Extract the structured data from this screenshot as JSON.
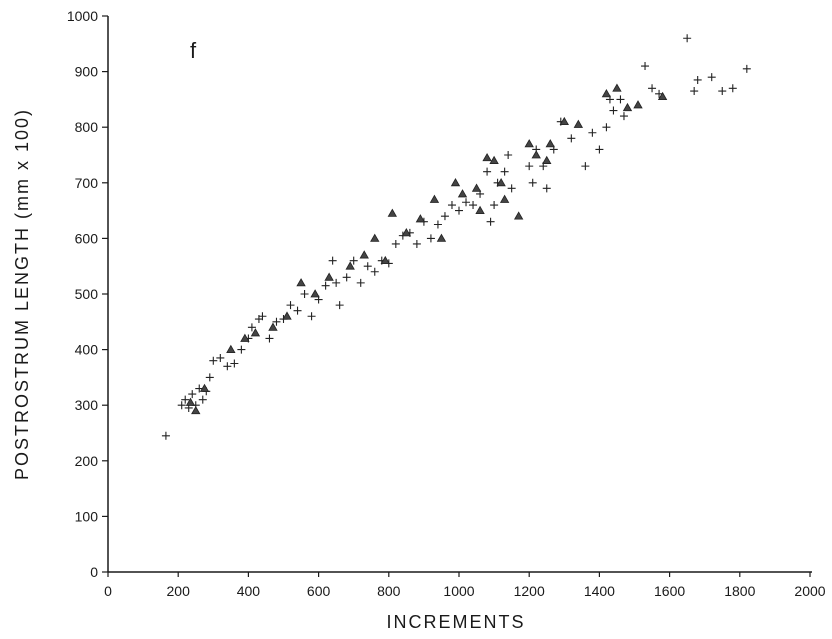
{
  "chart_data": {
    "type": "scatter",
    "panel_label": "f",
    "xlabel": "INCREMENTS",
    "ylabel": "POSTROSTRUM LENGTH (mm x 100)",
    "xlim": [
      0,
      2000
    ],
    "ylim": [
      0,
      1000
    ],
    "xticks": [
      "0",
      "200",
      "400",
      "600",
      "800",
      "1000",
      "1200",
      "1400",
      "1600",
      "1800",
      "2000"
    ],
    "yticks": [
      "0",
      "100",
      "200",
      "300",
      "400",
      "500",
      "600",
      "700",
      "800",
      "900",
      "1000"
    ],
    "grid": false,
    "series": [
      {
        "marker": "plus",
        "points": [
          [
            165,
            245
          ],
          [
            210,
            300
          ],
          [
            220,
            310
          ],
          [
            230,
            295
          ],
          [
            240,
            320
          ],
          [
            250,
            300
          ],
          [
            260,
            330
          ],
          [
            270,
            310
          ],
          [
            280,
            325
          ],
          [
            290,
            350
          ],
          [
            300,
            380
          ],
          [
            320,
            385
          ],
          [
            340,
            370
          ],
          [
            360,
            375
          ],
          [
            380,
            400
          ],
          [
            400,
            420
          ],
          [
            410,
            440
          ],
          [
            430,
            455
          ],
          [
            440,
            460
          ],
          [
            460,
            420
          ],
          [
            480,
            450
          ],
          [
            500,
            455
          ],
          [
            520,
            480
          ],
          [
            540,
            470
          ],
          [
            560,
            500
          ],
          [
            580,
            460
          ],
          [
            600,
            490
          ],
          [
            620,
            515
          ],
          [
            640,
            560
          ],
          [
            650,
            520
          ],
          [
            660,
            480
          ],
          [
            680,
            530
          ],
          [
            700,
            560
          ],
          [
            720,
            520
          ],
          [
            740,
            550
          ],
          [
            760,
            540
          ],
          [
            780,
            560
          ],
          [
            800,
            555
          ],
          [
            820,
            590
          ],
          [
            840,
            605
          ],
          [
            860,
            610
          ],
          [
            880,
            590
          ],
          [
            900,
            630
          ],
          [
            920,
            600
          ],
          [
            940,
            625
          ],
          [
            960,
            640
          ],
          [
            980,
            660
          ],
          [
            1000,
            650
          ],
          [
            1020,
            665
          ],
          [
            1040,
            660
          ],
          [
            1060,
            680
          ],
          [
            1080,
            720
          ],
          [
            1090,
            630
          ],
          [
            1100,
            660
          ],
          [
            1110,
            700
          ],
          [
            1130,
            720
          ],
          [
            1140,
            750
          ],
          [
            1150,
            690
          ],
          [
            1200,
            730
          ],
          [
            1210,
            700
          ],
          [
            1220,
            760
          ],
          [
            1240,
            730
          ],
          [
            1250,
            690
          ],
          [
            1270,
            760
          ],
          [
            1290,
            810
          ],
          [
            1320,
            780
          ],
          [
            1360,
            730
          ],
          [
            1380,
            790
          ],
          [
            1400,
            760
          ],
          [
            1420,
            800
          ],
          [
            1430,
            850
          ],
          [
            1440,
            830
          ],
          [
            1460,
            850
          ],
          [
            1470,
            820
          ],
          [
            1530,
            910
          ],
          [
            1550,
            870
          ],
          [
            1570,
            860
          ],
          [
            1650,
            960
          ],
          [
            1670,
            865
          ],
          [
            1680,
            885
          ],
          [
            1720,
            890
          ],
          [
            1750,
            865
          ],
          [
            1780,
            870
          ],
          [
            1820,
            905
          ]
        ]
      },
      {
        "marker": "triangle",
        "points": [
          [
            235,
            305
          ],
          [
            250,
            290
          ],
          [
            275,
            330
          ],
          [
            350,
            400
          ],
          [
            390,
            420
          ],
          [
            420,
            430
          ],
          [
            470,
            440
          ],
          [
            510,
            460
          ],
          [
            550,
            520
          ],
          [
            590,
            500
          ],
          [
            630,
            530
          ],
          [
            690,
            550
          ],
          [
            730,
            570
          ],
          [
            760,
            600
          ],
          [
            790,
            560
          ],
          [
            810,
            645
          ],
          [
            850,
            610
          ],
          [
            890,
            635
          ],
          [
            930,
            670
          ],
          [
            950,
            600
          ],
          [
            990,
            700
          ],
          [
            1010,
            680
          ],
          [
            1050,
            690
          ],
          [
            1060,
            650
          ],
          [
            1080,
            745
          ],
          [
            1100,
            740
          ],
          [
            1120,
            700
          ],
          [
            1130,
            670
          ],
          [
            1170,
            640
          ],
          [
            1200,
            770
          ],
          [
            1220,
            750
          ],
          [
            1250,
            740
          ],
          [
            1260,
            770
          ],
          [
            1300,
            810
          ],
          [
            1340,
            805
          ],
          [
            1420,
            860
          ],
          [
            1450,
            870
          ],
          [
            1480,
            835
          ],
          [
            1510,
            840
          ],
          [
            1580,
            855
          ]
        ]
      }
    ]
  }
}
